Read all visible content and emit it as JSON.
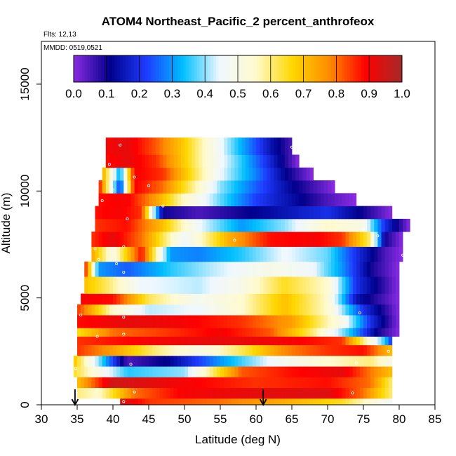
{
  "chart_data": {
    "type": "heatmap",
    "title": "ATOM4 Northeast_Pacific_2 percent_anthrofeox",
    "subtitle_flights": "Flts: 12,13",
    "subtitle_dates": "MMDD: 0519,0521",
    "xlabel": "Latitude (deg N)",
    "ylabel": "Altitude (m)",
    "xlim": [
      30,
      85
    ],
    "ylim": [
      0,
      17000
    ],
    "x_ticks": [
      "30",
      "35",
      "40",
      "45",
      "50",
      "55",
      "60",
      "65",
      "70",
      "75",
      "80",
      "85"
    ],
    "y_ticks": [
      "0",
      "5000",
      "10000",
      "15000"
    ],
    "colorbar": {
      "range": [
        0.0,
        1.0
      ],
      "labels": [
        "0.0",
        "0.1",
        "0.2",
        "0.3",
        "0.4",
        "0.5",
        "0.6",
        "0.7",
        "0.8",
        "0.9",
        "1.0"
      ],
      "colors": [
        "#8a2be2",
        "#00008b",
        "#1e3cff",
        "#00bfff",
        "#f0f8ff",
        "#fffacd",
        "#ffd700",
        "#ff8c00",
        "#ff0000",
        "#a52a2a"
      ]
    },
    "arrows_latitude": [
      34.7,
      61.0
    ],
    "bands": [
      {
        "alt_bottom": 0,
        "alt_top": 300,
        "lat_start": 41,
        "lat_end": 79,
        "profile": [
          [
            41,
            0.95
          ],
          [
            45,
            0.85
          ],
          [
            55,
            0.8
          ],
          [
            65,
            0.72
          ],
          [
            72,
            0.65
          ],
          [
            79,
            0.45
          ]
        ]
      },
      {
        "alt_bottom": 300,
        "alt_top": 800,
        "lat_start": 35,
        "lat_end": 79,
        "profile": [
          [
            35,
            0.6
          ],
          [
            38,
            0.55
          ],
          [
            43,
            0.8
          ],
          [
            50,
            0.9
          ],
          [
            60,
            0.92
          ],
          [
            70,
            0.93
          ],
          [
            75,
            0.8
          ],
          [
            79,
            0.6
          ]
        ]
      },
      {
        "alt_bottom": 800,
        "alt_top": 1300,
        "lat_start": 35,
        "lat_end": 79,
        "profile": [
          [
            35,
            0.7
          ],
          [
            40,
            0.95
          ],
          [
            50,
            0.9
          ],
          [
            60,
            0.85
          ],
          [
            70,
            0.88
          ],
          [
            76,
            0.8
          ],
          [
            79,
            0.6
          ]
        ]
      },
      {
        "alt_bottom": 1300,
        "alt_top": 1800,
        "lat_start": 34.5,
        "lat_end": 79,
        "profile": [
          [
            34.5,
            0.65
          ],
          [
            38,
            0.5
          ],
          [
            42,
            0.35
          ],
          [
            50,
            0.4
          ],
          [
            58,
            0.82
          ],
          [
            65,
            0.88
          ],
          [
            72,
            0.92
          ],
          [
            79,
            0.7
          ]
        ]
      },
      {
        "alt_bottom": 1800,
        "alt_top": 2300,
        "lat_start": 34.5,
        "lat_end": 79,
        "profile": [
          [
            34.5,
            0.7
          ],
          [
            38,
            0.4
          ],
          [
            42,
            0.05
          ],
          [
            48,
            0.12
          ],
          [
            55,
            0.3
          ],
          [
            62,
            0.45
          ],
          [
            70,
            0.55
          ],
          [
            76,
            0.6
          ],
          [
            79,
            0.5
          ]
        ]
      },
      {
        "alt_bottom": 2300,
        "alt_top": 2800,
        "lat_start": 35,
        "lat_end": 79,
        "profile": [
          [
            35,
            0.85
          ],
          [
            40,
            0.75
          ],
          [
            46,
            0.6
          ],
          [
            52,
            0.5
          ],
          [
            58,
            0.62
          ],
          [
            64,
            0.78
          ],
          [
            70,
            0.85
          ],
          [
            75,
            0.88
          ],
          [
            79,
            0.7
          ]
        ]
      },
      {
        "alt_bottom": 2800,
        "alt_top": 3200,
        "lat_start": 35,
        "lat_end": 79,
        "profile": [
          [
            35,
            0.85
          ],
          [
            45,
            0.9
          ],
          [
            55,
            0.92
          ],
          [
            65,
            0.9
          ],
          [
            72,
            0.85
          ],
          [
            78,
            0.35
          ],
          [
            79,
            0.2
          ]
        ]
      },
      {
        "alt_bottom": 3200,
        "alt_top": 3600,
        "lat_start": 35,
        "lat_end": 80,
        "profile": [
          [
            35,
            0.65
          ],
          [
            40,
            0.8
          ],
          [
            48,
            0.85
          ],
          [
            55,
            0.9
          ],
          [
            62,
            0.82
          ],
          [
            68,
            0.6
          ],
          [
            73,
            0.35
          ],
          [
            77,
            0.1
          ],
          [
            80,
            0.0
          ]
        ]
      },
      {
        "alt_bottom": 3600,
        "alt_top": 4200,
        "lat_start": 35,
        "lat_end": 80,
        "profile": [
          [
            35,
            0.88
          ],
          [
            42,
            0.92
          ],
          [
            50,
            0.9
          ],
          [
            58,
            0.85
          ],
          [
            65,
            0.75
          ],
          [
            72,
            0.5
          ],
          [
            76,
            0.2
          ],
          [
            80,
            0.0
          ]
        ]
      },
      {
        "alt_bottom": 4200,
        "alt_top": 4700,
        "lat_start": 35,
        "lat_end": 80,
        "profile": [
          [
            35,
            0.85
          ],
          [
            40,
            0.55
          ],
          [
            45,
            0.42
          ],
          [
            52,
            0.45
          ],
          [
            58,
            0.55
          ],
          [
            64,
            0.7
          ],
          [
            70,
            0.55
          ],
          [
            75,
            0.2
          ],
          [
            80,
            0.0
          ]
        ]
      },
      {
        "alt_bottom": 4700,
        "alt_top": 5200,
        "lat_start": 35.5,
        "lat_end": 80,
        "profile": [
          [
            35.5,
            0.9
          ],
          [
            40,
            0.88
          ],
          [
            45,
            0.62
          ],
          [
            52,
            0.48
          ],
          [
            58,
            0.55
          ],
          [
            64,
            0.7
          ],
          [
            70,
            0.55
          ],
          [
            74,
            0.15
          ],
          [
            80,
            0.0
          ]
        ]
      },
      {
        "alt_bottom": 5200,
        "alt_top": 6000,
        "lat_start": 36,
        "lat_end": 80,
        "profile": [
          [
            36,
            0.7
          ],
          [
            39,
            0.62
          ],
          [
            44,
            0.45
          ],
          [
            52,
            0.42
          ],
          [
            58,
            0.5
          ],
          [
            64,
            0.65
          ],
          [
            70,
            0.55
          ],
          [
            74,
            0.2
          ],
          [
            80,
            0.0
          ]
        ]
      },
      {
        "alt_bottom": 6000,
        "alt_top": 6700,
        "lat_start": 36,
        "lat_end": 80,
        "profile": [
          [
            36,
            0.9
          ],
          [
            38,
            0.3
          ],
          [
            42,
            0.25
          ],
          [
            48,
            0.35
          ],
          [
            54,
            0.42
          ],
          [
            62,
            0.5
          ],
          [
            68,
            0.45
          ],
          [
            72,
            0.3
          ],
          [
            76,
            0.1
          ],
          [
            80,
            0.0
          ]
        ]
      },
      {
        "alt_bottom": 6700,
        "alt_top": 7400,
        "lat_start": 37,
        "lat_end": 80.5,
        "profile": [
          [
            37,
            0.75
          ],
          [
            40,
            0.5
          ],
          [
            44,
            0.88
          ],
          [
            48,
            0.3
          ],
          [
            52,
            0.28
          ],
          [
            58,
            0.35
          ],
          [
            64,
            0.45
          ],
          [
            70,
            0.38
          ],
          [
            74,
            0.2
          ],
          [
            78,
            0.05
          ],
          [
            80.5,
            0.0
          ]
        ]
      },
      {
        "alt_bottom": 7400,
        "alt_top": 8100,
        "lat_start": 37,
        "lat_end": 80.5,
        "profile": [
          [
            37,
            0.85
          ],
          [
            40,
            0.92
          ],
          [
            44,
            0.8
          ],
          [
            50,
            0.45
          ],
          [
            56,
            0.72
          ],
          [
            62,
            0.88
          ],
          [
            68,
            0.9
          ],
          [
            72,
            0.85
          ],
          [
            76,
            0.6
          ],
          [
            78,
            0.1
          ],
          [
            80.5,
            0.0
          ]
        ]
      },
      {
        "alt_bottom": 8100,
        "alt_top": 8700,
        "lat_start": 37.5,
        "lat_end": 81.5,
        "profile": [
          [
            37.5,
            0.85
          ],
          [
            42,
            0.88
          ],
          [
            47,
            0.7
          ],
          [
            52,
            0.45
          ],
          [
            58,
            0.3
          ],
          [
            64,
            0.4
          ],
          [
            70,
            0.55
          ],
          [
            75,
            0.5
          ],
          [
            78,
            0.2
          ],
          [
            81.5,
            0.0
          ]
        ]
      },
      {
        "alt_bottom": 8700,
        "alt_top": 9300,
        "lat_start": 37.5,
        "lat_end": 79,
        "profile": [
          [
            37.5,
            0.88
          ],
          [
            41,
            0.9
          ],
          [
            44,
            0.85
          ],
          [
            47,
            0.1
          ],
          [
            52,
            0.05
          ],
          [
            58,
            0.1
          ],
          [
            64,
            0.15
          ],
          [
            70,
            0.2
          ],
          [
            75,
            0.1
          ],
          [
            79,
            0.0
          ]
        ]
      },
      {
        "alt_bottom": 9300,
        "alt_top": 9900,
        "lat_start": 38,
        "lat_end": 74,
        "profile": [
          [
            38,
            0.88
          ],
          [
            42,
            0.9
          ],
          [
            46,
            0.75
          ],
          [
            50,
            0.55
          ],
          [
            55,
            0.38
          ],
          [
            60,
            0.22
          ],
          [
            66,
            0.12
          ],
          [
            70,
            0.05
          ],
          [
            74,
            0.0
          ]
        ]
      },
      {
        "alt_bottom": 9900,
        "alt_top": 10500,
        "lat_start": 38,
        "lat_end": 71,
        "profile": [
          [
            38,
            0.9
          ],
          [
            41,
            0.2
          ],
          [
            43,
            0.9
          ],
          [
            47,
            0.8
          ],
          [
            51,
            0.6
          ],
          [
            55,
            0.4
          ],
          [
            60,
            0.25
          ],
          [
            65,
            0.12
          ],
          [
            71,
            0.0
          ]
        ]
      },
      {
        "alt_bottom": 10500,
        "alt_top": 11100,
        "lat_start": 38.5,
        "lat_end": 68,
        "profile": [
          [
            38.5,
            0.75
          ],
          [
            41,
            0.3
          ],
          [
            43,
            0.9
          ],
          [
            47,
            0.85
          ],
          [
            51,
            0.65
          ],
          [
            55,
            0.45
          ],
          [
            60,
            0.28
          ],
          [
            64,
            0.12
          ],
          [
            68,
            0.0
          ]
        ]
      },
      {
        "alt_bottom": 11100,
        "alt_top": 11700,
        "lat_start": 39,
        "lat_end": 66,
        "profile": [
          [
            39,
            0.88
          ],
          [
            42,
            0.92
          ],
          [
            46,
            0.85
          ],
          [
            50,
            0.68
          ],
          [
            54,
            0.5
          ],
          [
            58,
            0.35
          ],
          [
            62,
            0.18
          ],
          [
            66,
            0.0
          ]
        ]
      },
      {
        "alt_bottom": 11700,
        "alt_top": 12500,
        "lat_start": 39,
        "lat_end": 65,
        "profile": [
          [
            39,
            0.9
          ],
          [
            42,
            0.92
          ],
          [
            46,
            0.82
          ],
          [
            50,
            0.68
          ],
          [
            54,
            0.5
          ],
          [
            58,
            0.32
          ],
          [
            62,
            0.15
          ],
          [
            65,
            0.05
          ]
        ]
      }
    ],
    "sample_points": [
      [
        41,
        12150
      ],
      [
        65,
        12050
      ],
      [
        39.5,
        11250
      ],
      [
        43,
        10650
      ],
      [
        40,
        10050
      ],
      [
        45,
        10250
      ],
      [
        38.5,
        9550
      ],
      [
        42,
        8700
      ],
      [
        47,
        9300
      ],
      [
        37.5,
        7300
      ],
      [
        41.5,
        7400
      ],
      [
        57,
        7700
      ],
      [
        75,
        8200
      ],
      [
        77,
        7900
      ],
      [
        80.5,
        7000
      ],
      [
        38,
        6800
      ],
      [
        41.5,
        6200
      ],
      [
        40.5,
        6600
      ],
      [
        35.5,
        4200
      ],
      [
        41.5,
        4100
      ],
      [
        41.5,
        3300
      ],
      [
        37.8,
        3200
      ],
      [
        74.5,
        4300
      ],
      [
        79.5,
        3100
      ],
      [
        42.5,
        1900
      ],
      [
        74,
        1950
      ],
      [
        78.5,
        2500
      ],
      [
        34.8,
        1700
      ],
      [
        43,
        600
      ],
      [
        73.5,
        550
      ],
      [
        41.5,
        150
      ]
    ]
  }
}
